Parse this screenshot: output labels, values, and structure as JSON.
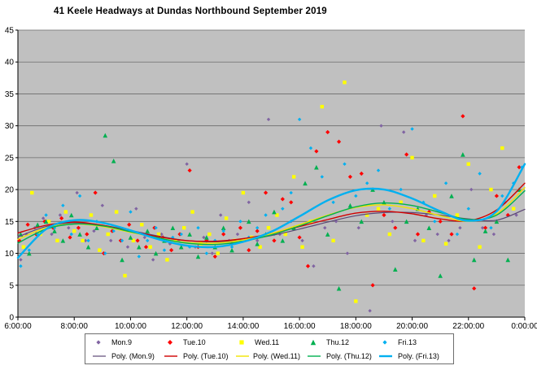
{
  "title": "41 Keele Headways at Dundas Northbound September 2019",
  "chart_data": {
    "type": "scatter",
    "title": "41 Keele Headways at Dundas Northbound September 2019",
    "xlabel": "",
    "ylabel": "",
    "grid": true,
    "legend_position": "bottom",
    "background": "#ffffff",
    "plot_background": "#c0c0c0",
    "grid_color": "#6b6b6b",
    "axis_color": "#000000",
    "x_axis": {
      "min_hour": 6,
      "max_hour": 24,
      "tick_interval_hours": 2,
      "labels": [
        "6:00:00",
        "8:00:00",
        "10:00:00",
        "12:00:00",
        "14:00:00",
        "16:00:00",
        "18:00:00",
        "20:00:00",
        "22:00:00",
        "0:00:00"
      ]
    },
    "y_axis": {
      "min": 0,
      "max": 45,
      "step": 5,
      "labels": [
        "0",
        "5",
        "10",
        "15",
        "20",
        "25",
        "30",
        "35",
        "40",
        "45"
      ]
    },
    "series": [
      {
        "name": "Mon.9",
        "color": "#8064A2",
        "marker": "diamond",
        "marker_size": 2.2,
        "points": [
          [
            6.1,
            9
          ],
          [
            6.3,
            13
          ],
          [
            6.6,
            14
          ],
          [
            6.9,
            15.5
          ],
          [
            7.2,
            13
          ],
          [
            7.5,
            16
          ],
          [
            7.8,
            14
          ],
          [
            8.1,
            19.5
          ],
          [
            8.4,
            12
          ],
          [
            8.7,
            13.5
          ],
          [
            9.0,
            17.5
          ],
          [
            9.3,
            12
          ],
          [
            9.6,
            14
          ],
          [
            9.9,
            11
          ],
          [
            10.2,
            17
          ],
          [
            10.5,
            12.5
          ],
          [
            10.8,
            9
          ],
          [
            11.1,
            13
          ],
          [
            11.4,
            11.5
          ],
          [
            11.7,
            12
          ],
          [
            12.0,
            24
          ],
          [
            12.3,
            11
          ],
          [
            12.6,
            12.5
          ],
          [
            12.9,
            10
          ],
          [
            13.2,
            16
          ],
          [
            13.5,
            12
          ],
          [
            13.8,
            13
          ],
          [
            14.2,
            18
          ],
          [
            14.5,
            12
          ],
          [
            14.9,
            31
          ],
          [
            15.3,
            13
          ],
          [
            15.7,
            15
          ],
          [
            16.1,
            12
          ],
          [
            16.5,
            8
          ],
          [
            16.9,
            14
          ],
          [
            17.3,
            15
          ],
          [
            17.7,
            10
          ],
          [
            18.1,
            14
          ],
          [
            18.5,
            1
          ],
          [
            18.9,
            30
          ],
          [
            19.3,
            15
          ],
          [
            19.7,
            29
          ],
          [
            20.1,
            12
          ],
          [
            20.5,
            16
          ],
          [
            20.9,
            13
          ],
          [
            21.3,
            12
          ],
          [
            21.7,
            14
          ],
          [
            22.1,
            20
          ],
          [
            22.5,
            14
          ],
          [
            22.9,
            13
          ],
          [
            23.3,
            18
          ],
          [
            23.7,
            16
          ]
        ]
      },
      {
        "name": "Tue.10",
        "color": "#FF0000",
        "marker": "diamond",
        "marker_size": 2.6,
        "points": [
          [
            6.05,
            12
          ],
          [
            6.35,
            14.5
          ],
          [
            6.65,
            13
          ],
          [
            6.95,
            15
          ],
          [
            7.25,
            14
          ],
          [
            7.55,
            15.5
          ],
          [
            7.85,
            12.5
          ],
          [
            8.15,
            14
          ],
          [
            8.45,
            13
          ],
          [
            8.75,
            19.5
          ],
          [
            9.05,
            10
          ],
          [
            9.35,
            13.5
          ],
          [
            9.65,
            12
          ],
          [
            9.95,
            14.5
          ],
          [
            10.25,
            12
          ],
          [
            10.55,
            11
          ],
          [
            10.85,
            14
          ],
          [
            11.15,
            12.5
          ],
          [
            11.45,
            10.5
          ],
          [
            11.75,
            13
          ],
          [
            12.1,
            23
          ],
          [
            12.4,
            11
          ],
          [
            12.7,
            12
          ],
          [
            13.0,
            9.5
          ],
          [
            13.3,
            13
          ],
          [
            13.6,
            11.5
          ],
          [
            13.9,
            14
          ],
          [
            14.2,
            10.5
          ],
          [
            14.5,
            13.5
          ],
          [
            14.8,
            19.5
          ],
          [
            15.1,
            12
          ],
          [
            15.4,
            18.5
          ],
          [
            15.7,
            18
          ],
          [
            16.0,
            12.5
          ],
          [
            16.3,
            8
          ],
          [
            16.6,
            26
          ],
          [
            17.0,
            29
          ],
          [
            17.4,
            27.5
          ],
          [
            17.8,
            22
          ],
          [
            18.2,
            22.5
          ],
          [
            18.6,
            5
          ],
          [
            19.0,
            16
          ],
          [
            19.4,
            14
          ],
          [
            19.8,
            25.5
          ],
          [
            20.2,
            13
          ],
          [
            20.6,
            16.5
          ],
          [
            21.0,
            15
          ],
          [
            21.4,
            13
          ],
          [
            21.8,
            31.5
          ],
          [
            22.2,
            4.5
          ],
          [
            22.6,
            14
          ],
          [
            23.0,
            19
          ],
          [
            23.4,
            16
          ],
          [
            23.8,
            23.5
          ]
        ]
      },
      {
        "name": "Wed.11",
        "color": "#FFFF00",
        "marker": "square",
        "marker_size": 2.2,
        "points": [
          [
            6.2,
            11
          ],
          [
            6.5,
            19.5
          ],
          [
            6.8,
            13
          ],
          [
            7.1,
            15
          ],
          [
            7.4,
            12
          ],
          [
            7.7,
            16.5
          ],
          [
            8.0,
            13.5
          ],
          [
            8.3,
            12
          ],
          [
            8.6,
            16
          ],
          [
            8.9,
            10.5
          ],
          [
            9.2,
            13
          ],
          [
            9.5,
            16.5
          ],
          [
            9.8,
            6.5
          ],
          [
            10.1,
            12
          ],
          [
            10.4,
            14.5
          ],
          [
            10.7,
            11
          ],
          [
            11.0,
            13
          ],
          [
            11.3,
            9
          ],
          [
            11.6,
            12
          ],
          [
            11.9,
            14
          ],
          [
            12.2,
            16.5
          ],
          [
            12.5,
            11.5
          ],
          [
            12.8,
            13
          ],
          [
            13.1,
            10
          ],
          [
            13.4,
            15.5
          ],
          [
            13.7,
            12
          ],
          [
            14.0,
            19.5
          ],
          [
            14.3,
            12.5
          ],
          [
            14.6,
            11
          ],
          [
            14.9,
            14
          ],
          [
            15.2,
            16
          ],
          [
            15.5,
            13
          ],
          [
            15.8,
            22
          ],
          [
            16.1,
            11
          ],
          [
            16.4,
            15
          ],
          [
            16.8,
            33
          ],
          [
            17.2,
            12
          ],
          [
            17.6,
            36.8
          ],
          [
            18.0,
            2.5
          ],
          [
            18.4,
            16
          ],
          [
            18.8,
            17
          ],
          [
            19.2,
            13
          ],
          [
            19.6,
            18
          ],
          [
            20.0,
            25
          ],
          [
            20.4,
            12
          ],
          [
            20.8,
            19
          ],
          [
            21.2,
            11.5
          ],
          [
            21.6,
            16
          ],
          [
            22.0,
            24
          ],
          [
            22.4,
            11
          ],
          [
            22.8,
            20
          ],
          [
            23.2,
            26.5
          ],
          [
            23.6,
            17
          ]
        ]
      },
      {
        "name": "Thu.12",
        "color": "#00B050",
        "marker": "triangle",
        "marker_size": 2.8,
        "points": [
          [
            6.1,
            13
          ],
          [
            6.4,
            10
          ],
          [
            6.7,
            14.5
          ],
          [
            7.0,
            15
          ],
          [
            7.3,
            13.5
          ],
          [
            7.6,
            12
          ],
          [
            7.9,
            16
          ],
          [
            8.2,
            13
          ],
          [
            8.5,
            11
          ],
          [
            8.8,
            14
          ],
          [
            9.1,
            28.5
          ],
          [
            9.4,
            24.5
          ],
          [
            9.7,
            9
          ],
          [
            10.0,
            12.5
          ],
          [
            10.3,
            11
          ],
          [
            10.6,
            13.5
          ],
          [
            10.9,
            10
          ],
          [
            11.2,
            12
          ],
          [
            11.5,
            14
          ],
          [
            11.8,
            11
          ],
          [
            12.1,
            13
          ],
          [
            12.4,
            9.5
          ],
          [
            12.7,
            12.5
          ],
          [
            13.0,
            11
          ],
          [
            13.3,
            14
          ],
          [
            13.6,
            10.5
          ],
          [
            13.9,
            12
          ],
          [
            14.2,
            15
          ],
          [
            14.5,
            11.5
          ],
          [
            14.8,
            13
          ],
          [
            15.1,
            16.5
          ],
          [
            15.4,
            12
          ],
          [
            15.8,
            14
          ],
          [
            16.2,
            21
          ],
          [
            16.6,
            23.5
          ],
          [
            17.0,
            13
          ],
          [
            17.4,
            4.5
          ],
          [
            17.8,
            17.5
          ],
          [
            18.2,
            15
          ],
          [
            18.6,
            20
          ],
          [
            19.0,
            18
          ],
          [
            19.4,
            7.5
          ],
          [
            19.8,
            15
          ],
          [
            20.2,
            17
          ],
          [
            20.6,
            14
          ],
          [
            21.0,
            6.5
          ],
          [
            21.4,
            19
          ],
          [
            21.8,
            25.5
          ],
          [
            22.2,
            9
          ],
          [
            22.6,
            13.5
          ],
          [
            23.0,
            15
          ],
          [
            23.4,
            9
          ],
          [
            23.8,
            20
          ]
        ]
      },
      {
        "name": "Fri.13",
        "color": "#00B0F0",
        "marker": "diamond",
        "marker_size": 2.2,
        "points": [
          [
            6.1,
            8
          ],
          [
            6.4,
            10.5
          ],
          [
            6.7,
            13
          ],
          [
            7.0,
            16
          ],
          [
            7.3,
            14
          ],
          [
            7.6,
            17.5
          ],
          [
            7.9,
            13
          ],
          [
            8.2,
            19
          ],
          [
            8.5,
            12
          ],
          [
            8.8,
            15
          ],
          [
            9.1,
            10
          ],
          [
            9.4,
            13.5
          ],
          [
            9.7,
            12
          ],
          [
            10.0,
            16.5
          ],
          [
            10.3,
            9.5
          ],
          [
            10.6,
            12
          ],
          [
            10.9,
            14
          ],
          [
            11.2,
            10.5
          ],
          [
            11.5,
            12.5
          ],
          [
            11.8,
            13
          ],
          [
            12.1,
            11
          ],
          [
            12.4,
            14
          ],
          [
            12.7,
            10
          ],
          [
            13.0,
            12
          ],
          [
            13.3,
            13.5
          ],
          [
            13.6,
            11
          ],
          [
            13.9,
            15
          ],
          [
            14.2,
            12.5
          ],
          [
            14.5,
            14
          ],
          [
            14.8,
            16
          ],
          [
            15.1,
            13
          ],
          [
            15.4,
            17
          ],
          [
            15.7,
            19.5
          ],
          [
            16.0,
            31
          ],
          [
            16.4,
            26.5
          ],
          [
            16.8,
            22
          ],
          [
            17.2,
            18
          ],
          [
            17.6,
            24
          ],
          [
            18.0,
            19
          ],
          [
            18.4,
            21
          ],
          [
            18.8,
            23
          ],
          [
            19.2,
            17
          ],
          [
            19.6,
            20
          ],
          [
            20.0,
            29.5
          ],
          [
            20.4,
            18
          ],
          [
            20.8,
            15
          ],
          [
            21.2,
            21
          ],
          [
            21.6,
            13
          ],
          [
            22.0,
            17
          ],
          [
            22.4,
            22.5
          ],
          [
            22.8,
            14
          ],
          [
            23.2,
            19
          ],
          [
            23.6,
            21
          ],
          [
            23.9,
            23.5
          ]
        ]
      }
    ],
    "poly_series": [
      {
        "name": "Poly. (Mon.9)",
        "color": "#5C4776",
        "width": 1.2,
        "x_start": 6,
        "x_step": 1,
        "values": [
          12.6,
          14.2,
          14.8,
          14.4,
          13.6,
          12.7,
          12.0,
          11.8,
          12.1,
          12.8,
          13.8,
          14.9,
          15.9,
          16.4,
          16.4,
          16.0,
          15.4,
          15.2,
          16.9
        ]
      },
      {
        "name": "Poly. (Tue.10)",
        "color": "#D00000",
        "width": 1.4,
        "x_start": 6,
        "x_step": 1,
        "values": [
          13.2,
          14.4,
          14.9,
          14.4,
          13.5,
          12.6,
          12.0,
          11.9,
          12.3,
          13.1,
          14.2,
          15.3,
          16.3,
          16.6,
          16.2,
          15.4,
          15.1,
          16.8,
          21.0
        ]
      },
      {
        "name": "Poly. (Wed.11)",
        "color": "#F2E400",
        "width": 1.4,
        "x_start": 6,
        "x_step": 1,
        "values": [
          12.2,
          14.0,
          14.6,
          14.2,
          13.3,
          12.4,
          11.7,
          11.6,
          12.1,
          13.1,
          14.5,
          16.0,
          17.2,
          17.6,
          17.0,
          15.9,
          15.0,
          16.2,
          20.3
        ]
      },
      {
        "name": "Poly. (Thu.12)",
        "color": "#00B050",
        "width": 1.4,
        "x_start": 6,
        "x_step": 1,
        "values": [
          11.6,
          13.8,
          14.6,
          14.3,
          13.4,
          12.4,
          11.6,
          11.4,
          11.9,
          12.9,
          14.3,
          15.9,
          17.3,
          17.9,
          17.5,
          16.4,
          15.3,
          16.0,
          19.8
        ]
      },
      {
        "name": "Poly. (Fri.13)",
        "color": "#00B0F0",
        "width": 2.4,
        "x_start": 6,
        "x_step": 1,
        "values": [
          9.3,
          13.8,
          15.2,
          14.8,
          13.6,
          12.2,
          11.2,
          11.0,
          11.8,
          13.4,
          15.8,
          18.3,
          19.9,
          20.0,
          18.6,
          16.6,
          15.1,
          16.6,
          24.0
        ]
      }
    ]
  }
}
